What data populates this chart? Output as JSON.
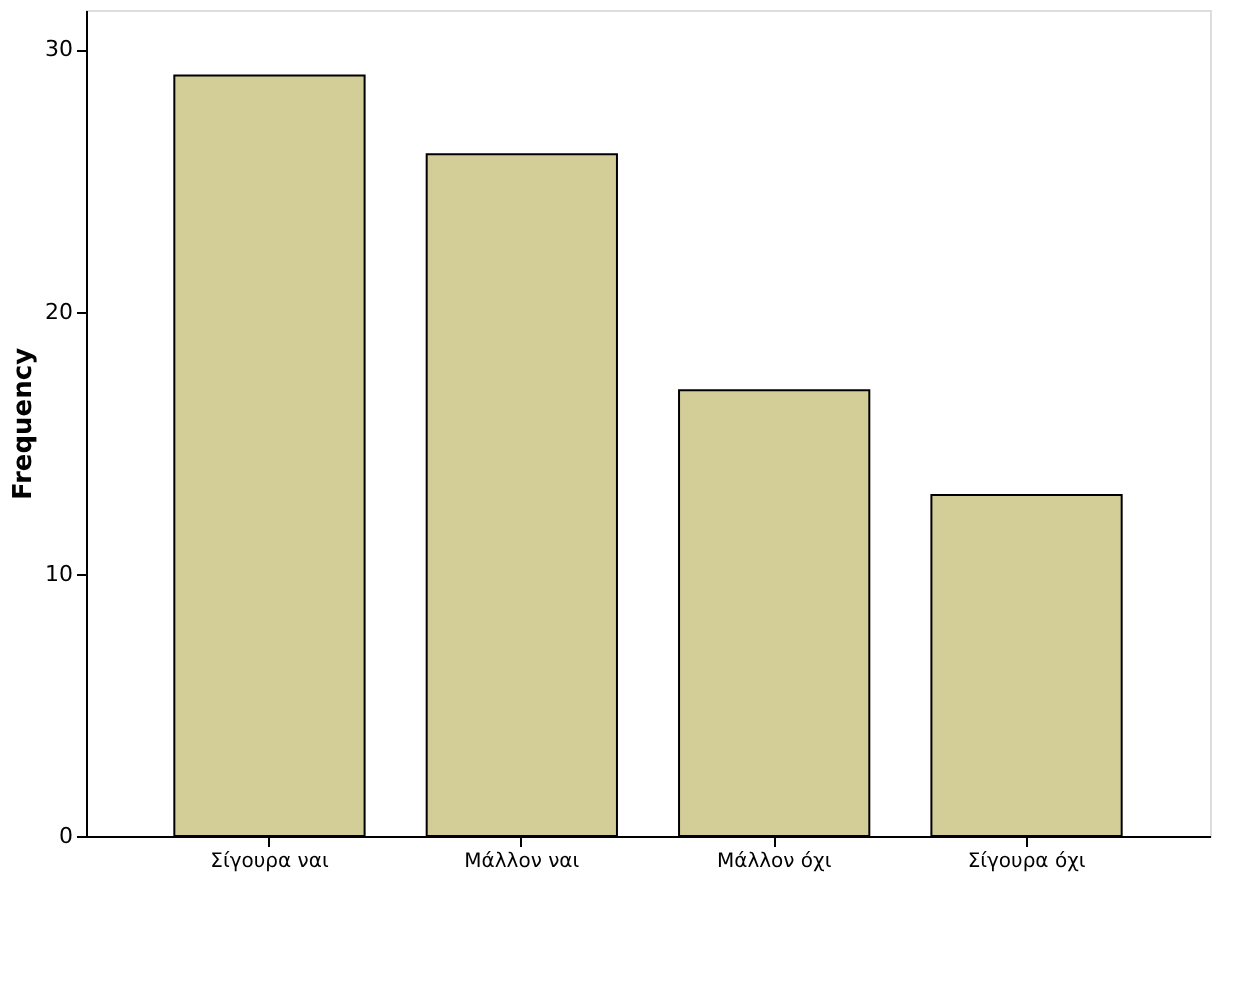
{
  "chart_data": {
    "type": "bar",
    "ylabel": "Frequency",
    "categories": [
      "Σίγουρα ναι",
      "Μάλλον ναι",
      "Μάλλον όχι",
      "Σίγουρα όχι"
    ],
    "values": [
      29,
      26,
      17,
      13
    ],
    "color": "#d3ce97",
    "ylim": [
      0,
      31.5
    ],
    "yticks": [
      0,
      10,
      20,
      30
    ],
    "grid": false
  }
}
